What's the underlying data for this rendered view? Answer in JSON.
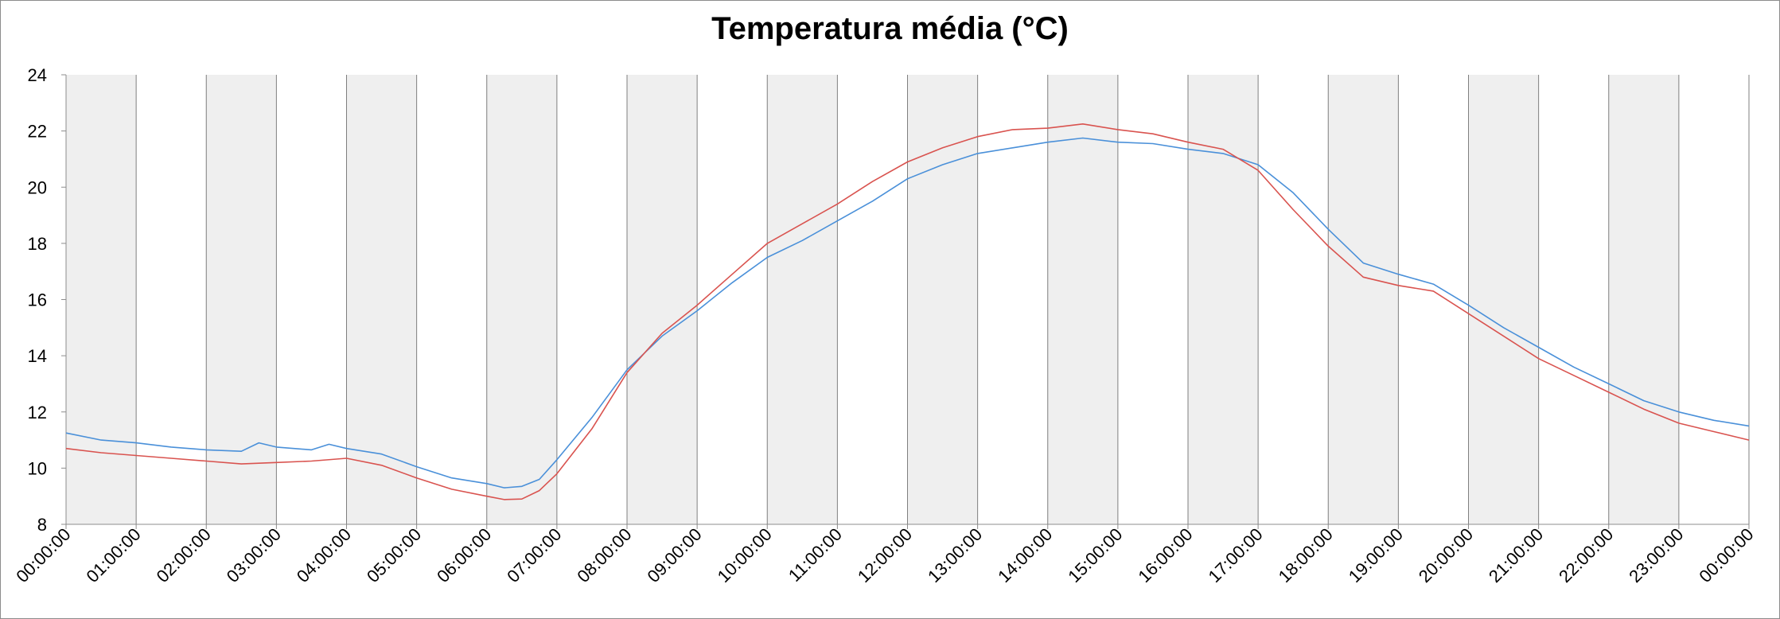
{
  "chart_data": {
    "type": "line",
    "title": "Temperatura média (°C)",
    "xlabel": "",
    "ylabel": "",
    "ylim": [
      8,
      24
    ],
    "yticks": [
      8,
      10,
      12,
      14,
      16,
      18,
      20,
      22,
      24
    ],
    "x_tick_labels": [
      "00:00:00",
      "01:00:00",
      "02:00:00",
      "03:00:00",
      "04:00:00",
      "05:00:00",
      "06:00:00",
      "07:00:00",
      "08:00:00",
      "09:00:00",
      "10:00:00",
      "11:00:00",
      "12:00:00",
      "13:00:00",
      "14:00:00",
      "15:00:00",
      "16:00:00",
      "17:00:00",
      "18:00:00",
      "19:00:00",
      "20:00:00",
      "21:00:00",
      "22:00:00",
      "23:00:00",
      "00:00:00"
    ],
    "x_unit": "hours",
    "grid": "alternating vertical hour bands",
    "legend": "none",
    "series": [
      {
        "color": "#4a90d9",
        "x": [
          0,
          0.5,
          1,
          1.5,
          2,
          2.5,
          2.75,
          3,
          3.5,
          3.75,
          4,
          4.5,
          5,
          5.5,
          6,
          6.25,
          6.5,
          6.75,
          7,
          7.5,
          8,
          8.5,
          9,
          9.5,
          10,
          10.5,
          11,
          11.5,
          12,
          12.5,
          13,
          13.5,
          14,
          14.5,
          15,
          15.5,
          16,
          16.5,
          17,
          17.5,
          18,
          18.5,
          19,
          19.5,
          20,
          20.5,
          21,
          21.5,
          22,
          22.5,
          23,
          23.5,
          24
        ],
        "y": [
          11.25,
          11.0,
          10.9,
          10.75,
          10.65,
          10.6,
          10.9,
          10.75,
          10.65,
          10.85,
          10.7,
          10.5,
          10.05,
          9.65,
          9.45,
          9.3,
          9.35,
          9.6,
          10.3,
          11.8,
          13.5,
          14.7,
          15.6,
          16.6,
          17.5,
          18.1,
          18.8,
          19.5,
          20.3,
          20.8,
          21.2,
          21.4,
          21.6,
          21.75,
          21.6,
          21.55,
          21.35,
          21.2,
          20.8,
          19.8,
          18.5,
          17.3,
          16.9,
          16.55,
          15.8,
          15.0,
          14.3,
          13.6,
          13.0,
          12.4,
          12.0,
          11.7,
          11.5
        ]
      },
      {
        "color": "#d9534f",
        "x": [
          0,
          0.5,
          1,
          1.5,
          2,
          2.5,
          3,
          3.5,
          4,
          4.5,
          5,
          5.5,
          6,
          6.25,
          6.5,
          6.75,
          7,
          7.5,
          8,
          8.5,
          9,
          9.5,
          10,
          10.5,
          11,
          11.5,
          12,
          12.5,
          13,
          13.5,
          14,
          14.5,
          15,
          15.5,
          16,
          16.5,
          17,
          17.5,
          18,
          18.5,
          19,
          19.5,
          20,
          20.5,
          21,
          21.5,
          22,
          22.5,
          23,
          23.5,
          24
        ],
        "y": [
          10.7,
          10.55,
          10.45,
          10.35,
          10.25,
          10.15,
          10.2,
          10.25,
          10.35,
          10.1,
          9.65,
          9.25,
          9.0,
          8.88,
          8.9,
          9.2,
          9.8,
          11.4,
          13.4,
          14.8,
          15.8,
          16.9,
          18.0,
          18.7,
          19.4,
          20.2,
          20.9,
          21.4,
          21.8,
          22.05,
          22.1,
          22.25,
          22.05,
          21.9,
          21.6,
          21.35,
          20.6,
          19.2,
          17.9,
          16.8,
          16.5,
          16.3,
          15.5,
          14.7,
          13.9,
          13.3,
          12.7,
          12.1,
          11.6,
          11.3,
          11.0
        ]
      }
    ]
  }
}
